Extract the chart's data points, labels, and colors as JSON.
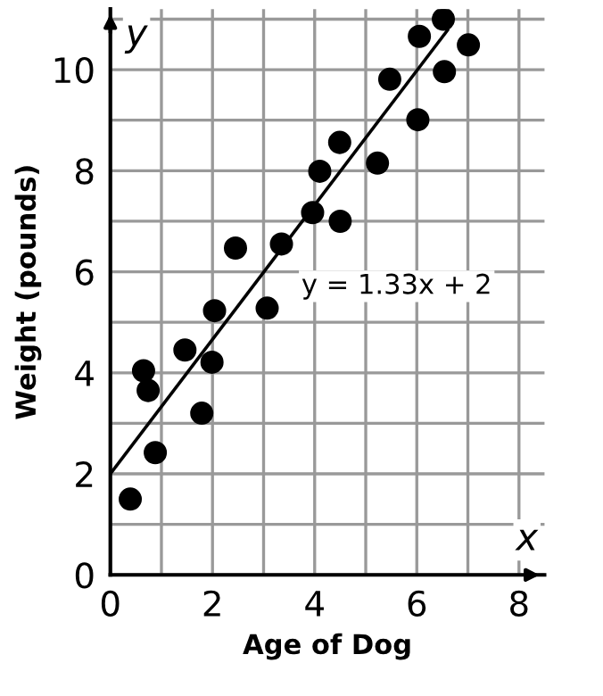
{
  "chart_data": {
    "type": "scatter",
    "xlabel": "Age of Dog",
    "ylabel": "Weight (pounds)",
    "xlim": [
      0,
      8.5
    ],
    "ylim": [
      0,
      11.2
    ],
    "xticks": [
      0,
      {
        "value": 1,
        "label": null
      },
      2,
      {
        "value": 3,
        "label": null
      },
      4,
      {
        "value": 5,
        "label": null
      },
      6,
      {
        "value": 7,
        "label": null
      },
      8
    ],
    "yticks": [
      0,
      {
        "value": 1,
        "label": null
      },
      2,
      {
        "value": 3,
        "label": null
      },
      4,
      {
        "value": 5,
        "label": null
      },
      6,
      {
        "value": 7,
        "label": null
      },
      8,
      {
        "value": 9,
        "label": null
      },
      10,
      {
        "value": 11,
        "label": null
      }
    ],
    "grid": true,
    "series": [
      {
        "marker": "circle",
        "color": "#000000",
        "x": [
          0.39,
          0.65,
          0.74,
          0.88,
          1.46,
          1.79,
          1.99,
          2.04,
          2.45,
          3.07,
          3.35,
          3.96,
          4.1,
          4.49,
          4.5,
          5.23,
          5.47,
          6.02,
          6.05,
          6.52,
          6.54,
          7.01
        ],
        "values": [
          1.5,
          4.04,
          3.65,
          2.42,
          4.45,
          3.2,
          4.21,
          5.23,
          6.47,
          5.28,
          6.55,
          7.17,
          7.99,
          8.56,
          7.0,
          8.15,
          9.81,
          9.01,
          10.66,
          11.0,
          9.96,
          10.49
        ]
      },
      {
        "type": "line",
        "color": "#000000",
        "x": [
          0,
          6.6
        ],
        "values": [
          2,
          10.78
        ]
      }
    ],
    "annotations": [
      "y = 1.33x + 2",
      "x",
      "y"
    ]
  }
}
